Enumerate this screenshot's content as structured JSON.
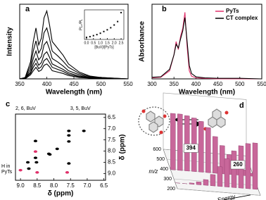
{
  "chart_data": [
    {
      "type": "line",
      "panel": "a",
      "xlabel": "Wavelength (nm)",
      "ylabel": "Intensity",
      "x": [
        350,
        360,
        370,
        375,
        380,
        385,
        390,
        395,
        400,
        405,
        410,
        420,
        430,
        440,
        460,
        480,
        500,
        550
      ],
      "xlim": [
        350,
        550
      ],
      "xticks": [
        350,
        400,
        450,
        500,
        550
      ],
      "ylim": [
        0,
        1.1
      ],
      "series": [
        {
          "color": "#000000",
          "values": [
            0,
            0.02,
            0.25,
            0.55,
            0.75,
            0.5,
            0.6,
            0.9,
            1.0,
            0.8,
            0.55,
            0.45,
            0.35,
            0.22,
            0.1,
            0.04,
            0.02,
            0
          ]
        },
        {
          "color": "#000000",
          "values": [
            0,
            0.02,
            0.19,
            0.41,
            0.56,
            0.38,
            0.45,
            0.68,
            0.75,
            0.6,
            0.41,
            0.34,
            0.26,
            0.17,
            0.08,
            0.03,
            0.02,
            0
          ]
        },
        {
          "color": "#000000",
          "values": [
            0,
            0.01,
            0.14,
            0.3,
            0.41,
            0.28,
            0.33,
            0.5,
            0.55,
            0.44,
            0.3,
            0.25,
            0.19,
            0.12,
            0.06,
            0.02,
            0.01,
            0
          ]
        },
        {
          "color": "#000000",
          "values": [
            0,
            0.01,
            0.1,
            0.22,
            0.3,
            0.2,
            0.24,
            0.36,
            0.4,
            0.32,
            0.22,
            0.18,
            0.14,
            0.09,
            0.04,
            0.02,
            0.01,
            0
          ]
        },
        {
          "color": "#000000",
          "values": [
            0,
            0.01,
            0.08,
            0.17,
            0.23,
            0.15,
            0.18,
            0.27,
            0.3,
            0.24,
            0.17,
            0.14,
            0.11,
            0.07,
            0.03,
            0.01,
            0.01,
            0
          ]
        },
        {
          "color": "#000000",
          "values": [
            0,
            0,
            0.06,
            0.12,
            0.17,
            0.11,
            0.13,
            0.2,
            0.22,
            0.18,
            0.12,
            0.1,
            0.08,
            0.05,
            0.02,
            0.01,
            0,
            0
          ]
        }
      ]
    },
    {
      "type": "scatter",
      "xlabel": "[BuV]/[PyTs]",
      "ylabel": "PL₀/PL",
      "color": "#000000",
      "x": [
        0,
        0.25,
        0.5,
        0.75,
        1.0,
        1.25,
        1.5,
        1.75,
        2.0,
        2.25,
        2.5
      ],
      "values": [
        1,
        1.1,
        1.25,
        1.4,
        1.6,
        1.85,
        2.1,
        2.4,
        2.8,
        3.3,
        4.6
      ],
      "xlim": [
        -0.15,
        2.7
      ],
      "xticks": [
        {
          "value": 0,
          "label": "0.0"
        },
        0.5,
        {
          "value": 1,
          "label": "1.0"
        },
        1.5,
        {
          "value": 2,
          "label": "2.0"
        },
        2.5
      ],
      "ylim": [
        0.7,
        5
      ]
    },
    {
      "type": "line",
      "panel": "b",
      "xlabel": "Wavelength (nm)",
      "ylabel": "Absorbance",
      "legend": "upper right",
      "x": [
        300,
        320,
        340,
        350,
        355,
        360,
        365,
        370,
        375,
        380,
        385,
        390,
        400,
        420,
        450,
        500,
        550
      ],
      "xlim": [
        300,
        550
      ],
      "xticks": [
        300,
        350,
        400,
        450,
        500,
        550
      ],
      "ylim": [
        0,
        1.4
      ],
      "series": [
        {
          "name": "PyTs",
          "color": "#e0306a",
          "values": [
            0.02,
            0.03,
            0.15,
            0.45,
            0.7,
            0.55,
            0.8,
            0.95,
            1.25,
            0.6,
            0.15,
            0.05,
            0.02,
            0.01,
            0,
            0,
            0
          ]
        },
        {
          "name": "CT complex",
          "color": "#000000",
          "values": [
            0.03,
            0.04,
            0.18,
            0.45,
            0.65,
            0.58,
            0.75,
            0.9,
            1.15,
            0.7,
            0.25,
            0.1,
            0.04,
            0.02,
            0.01,
            0.01,
            0
          ]
        }
      ]
    },
    {
      "type": "scatter",
      "panel": "c",
      "xlabel": "δ (ppm)",
      "ylabel": "δ (ppm)",
      "annotations": [
        "2, 6, BuV",
        "3, 5, BuV",
        "H in",
        "PyTs"
      ],
      "xlim": [
        9.15,
        6.45
      ],
      "xticks": [
        {
          "value": 9,
          "label": "9.0"
        },
        8.5,
        {
          "value": 8,
          "label": "8.0"
        },
        7.5,
        {
          "value": 7,
          "label": "7.0"
        },
        6.5
      ],
      "ylim": [
        9.3,
        6.35
      ],
      "yticks": [
        6.5,
        {
          "value": 7,
          "label": "7.0"
        },
        7.5,
        {
          "value": 8,
          "label": "8.0"
        },
        8.5,
        {
          "value": 9,
          "label": "9.0"
        }
      ],
      "series": [
        {
          "color": "#000000",
          "x": [
            8.55,
            7.55,
            8.52,
            7.55,
            8.15,
            8.12,
            8.75,
            7.9,
            8.55,
            7.55,
            7.55,
            7.1,
            8.78
          ],
          "values": [
            7.55,
            8.55,
            8.5,
            7.57,
            8.12,
            8.15,
            8.78,
            7.9,
            8.3,
            7.3,
            7.1,
            7.1,
            8.5
          ]
        },
        {
          "color": "#e0306a",
          "x": [
            8.5,
            7.6,
            8.55,
            9.0
          ],
          "values": [
            8.95,
            8.95,
            8.02,
            8.85
          ]
        }
      ]
    },
    {
      "type": "bar3d",
      "panel": "d",
      "ylabel": "m/z",
      "xlabel": "Energy",
      "color": "#c8679a",
      "ylim": [
        200,
        600
      ],
      "yticks": [
        200,
        300,
        400,
        500,
        600
      ],
      "zlim": [
        0,
        1
      ],
      "series": [
        {
          "name": "394",
          "x": 394,
          "values": [
            1,
            1,
            0.98,
            0.95,
            0.9,
            0.8,
            0.65,
            0.5,
            0.35,
            0.2,
            0.1,
            0.05
          ]
        },
        {
          "name": "260",
          "x": 260,
          "values": [
            0,
            0,
            0.02,
            0.05,
            0.1,
            0.2,
            0.35,
            0.5,
            0.65,
            0.75,
            0.8,
            0.82
          ]
        }
      ]
    }
  ]
}
